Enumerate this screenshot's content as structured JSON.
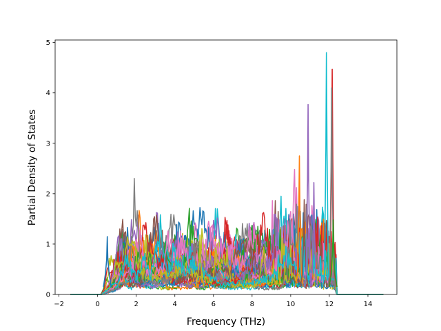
{
  "chart_data": {
    "type": "line",
    "title": "",
    "xlabel": "Frequency (THz)",
    "ylabel": "Partial Density of States",
    "xlim": [
      -2.2,
      15.5
    ],
    "ylim": [
      0,
      5.05
    ],
    "xticks": [
      -2,
      0,
      2,
      4,
      6,
      8,
      10,
      12,
      14
    ],
    "yticks": [
      0,
      1,
      2,
      3,
      4,
      5
    ],
    "xtick_labels": [
      "−2",
      "0",
      "2",
      "4",
      "6",
      "8",
      "10",
      "12",
      "14"
    ],
    "ytick_labels": [
      "0",
      "1",
      "2",
      "3",
      "4",
      "5"
    ],
    "grid": false,
    "legend": "none",
    "series_count": 40,
    "palette": [
      "#1f77b4",
      "#ff7f0e",
      "#2ca02c",
      "#d62728",
      "#9467bd",
      "#8c564b",
      "#e377c2",
      "#7f7f7f",
      "#bcbd22",
      "#17becf"
    ],
    "data_range": [
      -1.4,
      14.8
    ],
    "nonzero_range": [
      0.2,
      12.4
    ],
    "notable_peaks": [
      {
        "x": 0.5,
        "y": 1.15,
        "color": "#1f77b4"
      },
      {
        "x": 5.3,
        "y": 1.18,
        "color": "#bcbd22"
      },
      {
        "x": 10.45,
        "y": 2.75,
        "color": "#ff7f0e"
      },
      {
        "x": 10.7,
        "y": 1.88,
        "color": "#8c564b"
      },
      {
        "x": 10.9,
        "y": 3.77,
        "color": "#9467bd"
      },
      {
        "x": 11.2,
        "y": 2.22,
        "color": "#9467bd"
      },
      {
        "x": 11.85,
        "y": 4.8,
        "color": "#17becf"
      },
      {
        "x": 12.15,
        "y": 4.47,
        "color": "#d62728"
      },
      {
        "x": 12.12,
        "y": 4.1,
        "color": "#7f7f7f"
      },
      {
        "x": 12.2,
        "y": 1.48,
        "color": "#2ca02c"
      }
    ]
  }
}
